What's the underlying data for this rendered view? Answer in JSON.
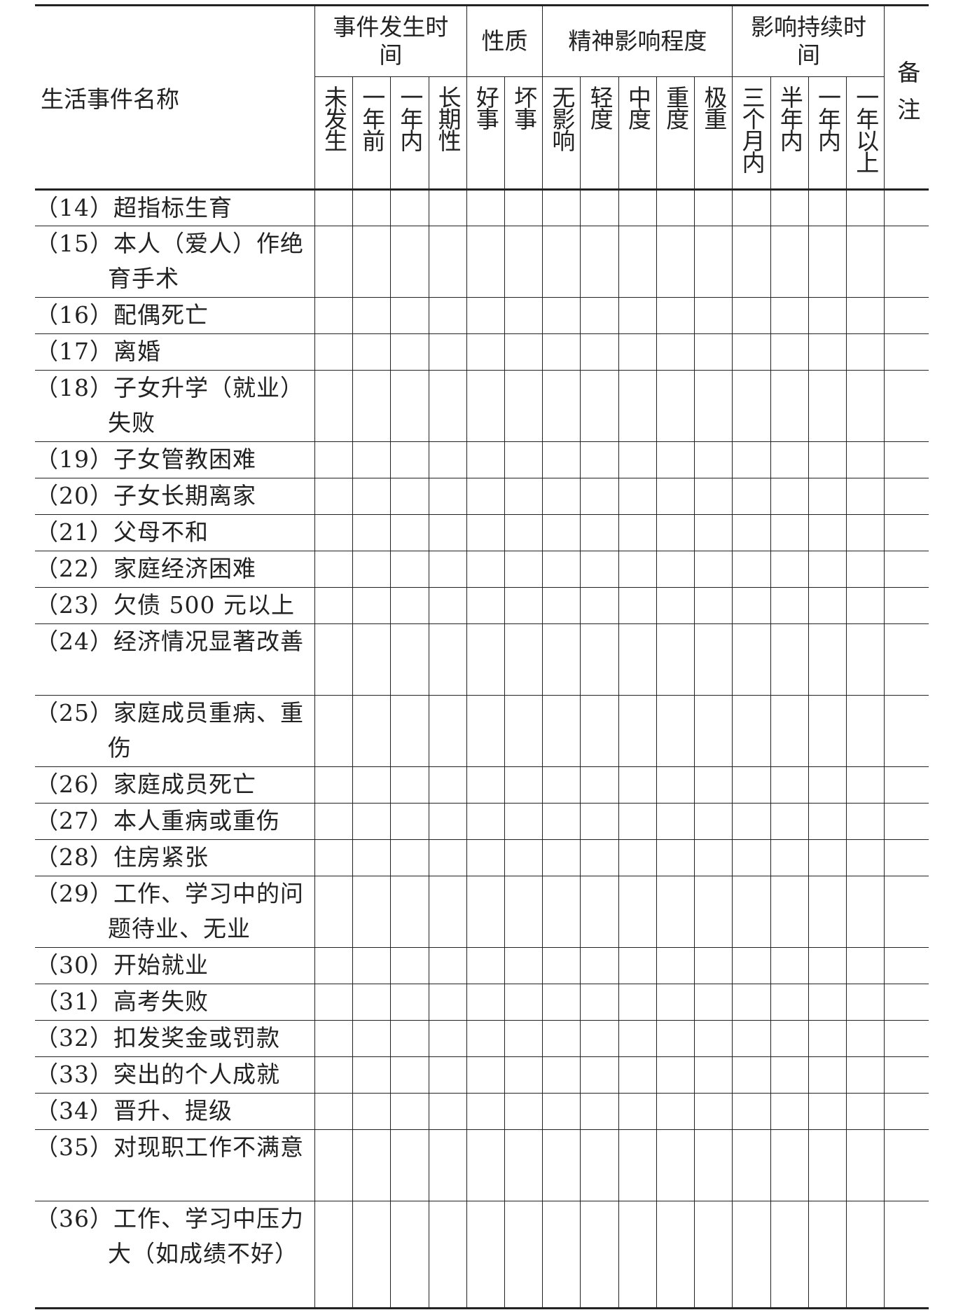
{
  "header": {
    "name_column": "生活事件名称",
    "groups": [
      {
        "label": "事件发生时间",
        "subs": [
          "未发生",
          "一年前",
          "一年内",
          "长期性"
        ]
      },
      {
        "label": "性质",
        "subs": [
          "好事",
          "坏事"
        ]
      },
      {
        "label": "精神影响程度",
        "subs": [
          "无影响",
          "轻度",
          "中度",
          "重度",
          "极重"
        ]
      },
      {
        "label": "影响持续时间",
        "subs": [
          "三个月内",
          "半年内",
          "一年内",
          "一年以上"
        ]
      }
    ],
    "remark": "备注"
  },
  "rows": [
    {
      "label": "（14）超指标生育",
      "lines": 1
    },
    {
      "label": "（15）本人（爱人）作绝育手术",
      "lines": 2
    },
    {
      "label": "（16）配偶死亡",
      "lines": 1
    },
    {
      "label": "（17）离婚",
      "lines": 1
    },
    {
      "label": "（18）子女升学（就业）失败",
      "lines": 2
    },
    {
      "label": "（19）子女管教困难",
      "lines": 1
    },
    {
      "label": "（20）子女长期离家",
      "lines": 1
    },
    {
      "label": "（21）父母不和",
      "lines": 1
    },
    {
      "label": "（22）家庭经济困难",
      "lines": 1
    },
    {
      "label": "（23）欠债 500 元以上",
      "lines": 1
    },
    {
      "label": "（24）经济情况显著改善",
      "lines": 2
    },
    {
      "label": "（25）家庭成员重病、重伤",
      "lines": 2
    },
    {
      "label": "（26）家庭成员死亡",
      "lines": 1
    },
    {
      "label": "（27）本人重病或重伤",
      "lines": 1
    },
    {
      "label": "（28）住房紧张",
      "lines": 1
    },
    {
      "label": "（29）工作、学习中的问题待业、无业",
      "lines": 2
    },
    {
      "label": "（30）开始就业",
      "lines": 1
    },
    {
      "label": "（31）高考失败",
      "lines": 1
    },
    {
      "label": "（32）扣发奖金或罚款",
      "lines": 1
    },
    {
      "label": "（33）突出的个人成就",
      "lines": 1
    },
    {
      "label": "（34）晋升、提级",
      "lines": 1
    },
    {
      "label": "（35）对现职工作不满意",
      "lines": 2
    },
    {
      "label": "（36）工作、学习中压力大（如成绩不好）",
      "lines": 3
    }
  ]
}
